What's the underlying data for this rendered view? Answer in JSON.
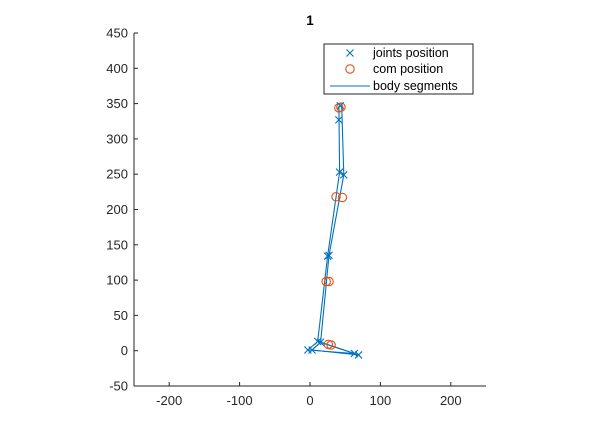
{
  "chart_data": {
    "type": "scatter",
    "title": "1",
    "xlabel": "",
    "ylabel": "",
    "xlim": [
      -250,
      250
    ],
    "ylim": [
      -50,
      450
    ],
    "xticks": [
      -200,
      -100,
      0,
      100,
      200
    ],
    "yticks": [
      -50,
      0,
      50,
      100,
      150,
      200,
      250,
      300,
      350,
      400,
      450
    ],
    "grid": false,
    "legend_location": "top-right",
    "series": [
      {
        "name": "joints position",
        "marker": "x",
        "color": "#0072BD",
        "points": [
          [
            -3,
            1
          ],
          [
            3,
            1
          ],
          [
            11,
            13
          ],
          [
            15,
            12
          ],
          [
            25,
            134
          ],
          [
            27,
            135
          ],
          [
            42,
            253
          ],
          [
            48,
            249
          ],
          [
            43,
            347
          ],
          [
            41,
            327
          ],
          [
            63,
            -4
          ],
          [
            69,
            -6
          ]
        ]
      },
      {
        "name": "com position",
        "marker": "o",
        "color": "#D95319",
        "points": [
          [
            26,
            9
          ],
          [
            30,
            8
          ],
          [
            23,
            98
          ],
          [
            27,
            98
          ],
          [
            37,
            218
          ],
          [
            46,
            217
          ],
          [
            41,
            344
          ],
          [
            44,
            345
          ]
        ]
      },
      {
        "name": "body segments",
        "marker": "line",
        "color": "#0072BD",
        "paths": [
          [
            [
              -3,
              1
            ],
            [
              11,
              13
            ],
            [
              25,
              134
            ],
            [
              42,
              253
            ],
            [
              41,
              347
            ]
          ],
          [
            [
              3,
              1
            ],
            [
              15,
              12
            ],
            [
              27,
              135
            ],
            [
              48,
              249
            ],
            [
              45,
              347
            ]
          ],
          [
            [
              -3,
              1
            ],
            [
              63,
              -4
            ]
          ],
          [
            [
              3,
              1
            ],
            [
              69,
              -6
            ]
          ],
          [
            [
              11,
              13
            ],
            [
              69,
              -6
            ]
          ],
          [
            [
              15,
              12
            ],
            [
              63,
              -4
            ]
          ]
        ]
      }
    ]
  }
}
